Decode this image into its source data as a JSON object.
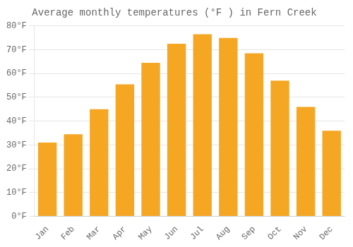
{
  "chart_data": {
    "type": "bar",
    "title": "Average monthly temperatures (°F ) in Fern Creek",
    "categories": [
      "Jan",
      "Feb",
      "Mar",
      "Apr",
      "May",
      "Jun",
      "Jul",
      "Aug",
      "Sep",
      "Oct",
      "Nov",
      "Dec"
    ],
    "values": [
      31,
      34.5,
      45,
      55.5,
      64.5,
      72.5,
      76.5,
      75,
      68.5,
      57,
      46,
      36
    ],
    "color": "#F5A623",
    "ylim": [
      0,
      80
    ],
    "yticks": [
      {
        "value": 0,
        "label": "0°F"
      },
      {
        "value": 10,
        "label": "10°F"
      },
      {
        "value": 20,
        "label": "20°F"
      },
      {
        "value": 30,
        "label": "30°F"
      },
      {
        "value": 40,
        "label": "40°F"
      },
      {
        "value": 50,
        "label": "50°F"
      },
      {
        "value": 60,
        "label": "60°F"
      },
      {
        "value": 70,
        "label": "70°F"
      },
      {
        "value": 80,
        "label": "80°F"
      }
    ],
    "grid": true
  }
}
